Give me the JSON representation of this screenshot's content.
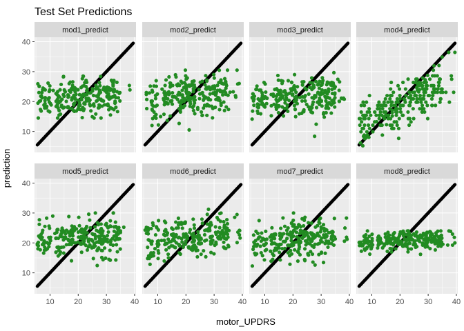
{
  "chart_data": {
    "type": "scatter",
    "title": "Test Set Predictions",
    "xlabel": "motor_UPDRS",
    "ylabel": "prediction",
    "xlim": [
      4.5,
      40.5
    ],
    "ylim": [
      3,
      41.5
    ],
    "x_ticks": [
      10,
      20,
      30,
      40
    ],
    "y_ticks": [
      10,
      20,
      30,
      40
    ],
    "grid": true,
    "layout": "faceted 2 rows x 4 columns",
    "colors": {
      "identity_points": "#000000",
      "prediction_points": "#228b22",
      "panel_background": "#ebebeb",
      "strip_background": "#d9d9d9",
      "grid": "#ffffff"
    },
    "identity_series": {
      "x_range": [
        5.5,
        39.5
      ],
      "note_values": "actual vs actual (y = x)"
    },
    "panels": [
      {
        "name": "mod1_predict",
        "x_range": [
          5.5,
          39.5
        ],
        "prediction_center": 21.5,
        "prediction_slope": 0.07,
        "prediction_spread": 3.2,
        "prediction_range": [
          14.5,
          28.5
        ]
      },
      {
        "name": "mod2_predict",
        "x_range": [
          5.5,
          39.5
        ],
        "prediction_center": 21.8,
        "prediction_slope": 0.1,
        "prediction_spread": 3.3,
        "prediction_range": [
          5,
          30.5
        ]
      },
      {
        "name": "mod3_predict",
        "x_range": [
          5.5,
          39.5
        ],
        "prediction_center": 21.5,
        "prediction_slope": 0.1,
        "prediction_spread": 3.4,
        "prediction_range": [
          4.5,
          33.5
        ]
      },
      {
        "name": "mod4_predict",
        "x_range": [
          5.5,
          39.5
        ],
        "prediction_center": 19.5,
        "prediction_slope": 0.35,
        "prediction_spread": 3.5,
        "prediction_range": [
          5,
          39
        ]
      },
      {
        "name": "mod5_predict",
        "x_range": [
          5.5,
          39.5
        ],
        "prediction_center": 21.5,
        "prediction_slope": 0.07,
        "prediction_spread": 3.2,
        "prediction_range": [
          12,
          30
        ]
      },
      {
        "name": "mod6_predict",
        "x_range": [
          5.5,
          39.5
        ],
        "prediction_center": 22,
        "prediction_slope": 0.1,
        "prediction_spread": 3.3,
        "prediction_range": [
          6,
          32.5
        ]
      },
      {
        "name": "mod7_predict",
        "x_range": [
          5.5,
          39.5
        ],
        "prediction_center": 21.5,
        "prediction_slope": 0.1,
        "prediction_spread": 3.5,
        "prediction_range": [
          4,
          35
        ]
      },
      {
        "name": "mod8_predict",
        "x_range": [
          5.5,
          39.5
        ],
        "prediction_center": 20.8,
        "prediction_slope": 0.04,
        "prediction_spread": 1.6,
        "prediction_range": [
          16,
          24
        ]
      }
    ]
  }
}
